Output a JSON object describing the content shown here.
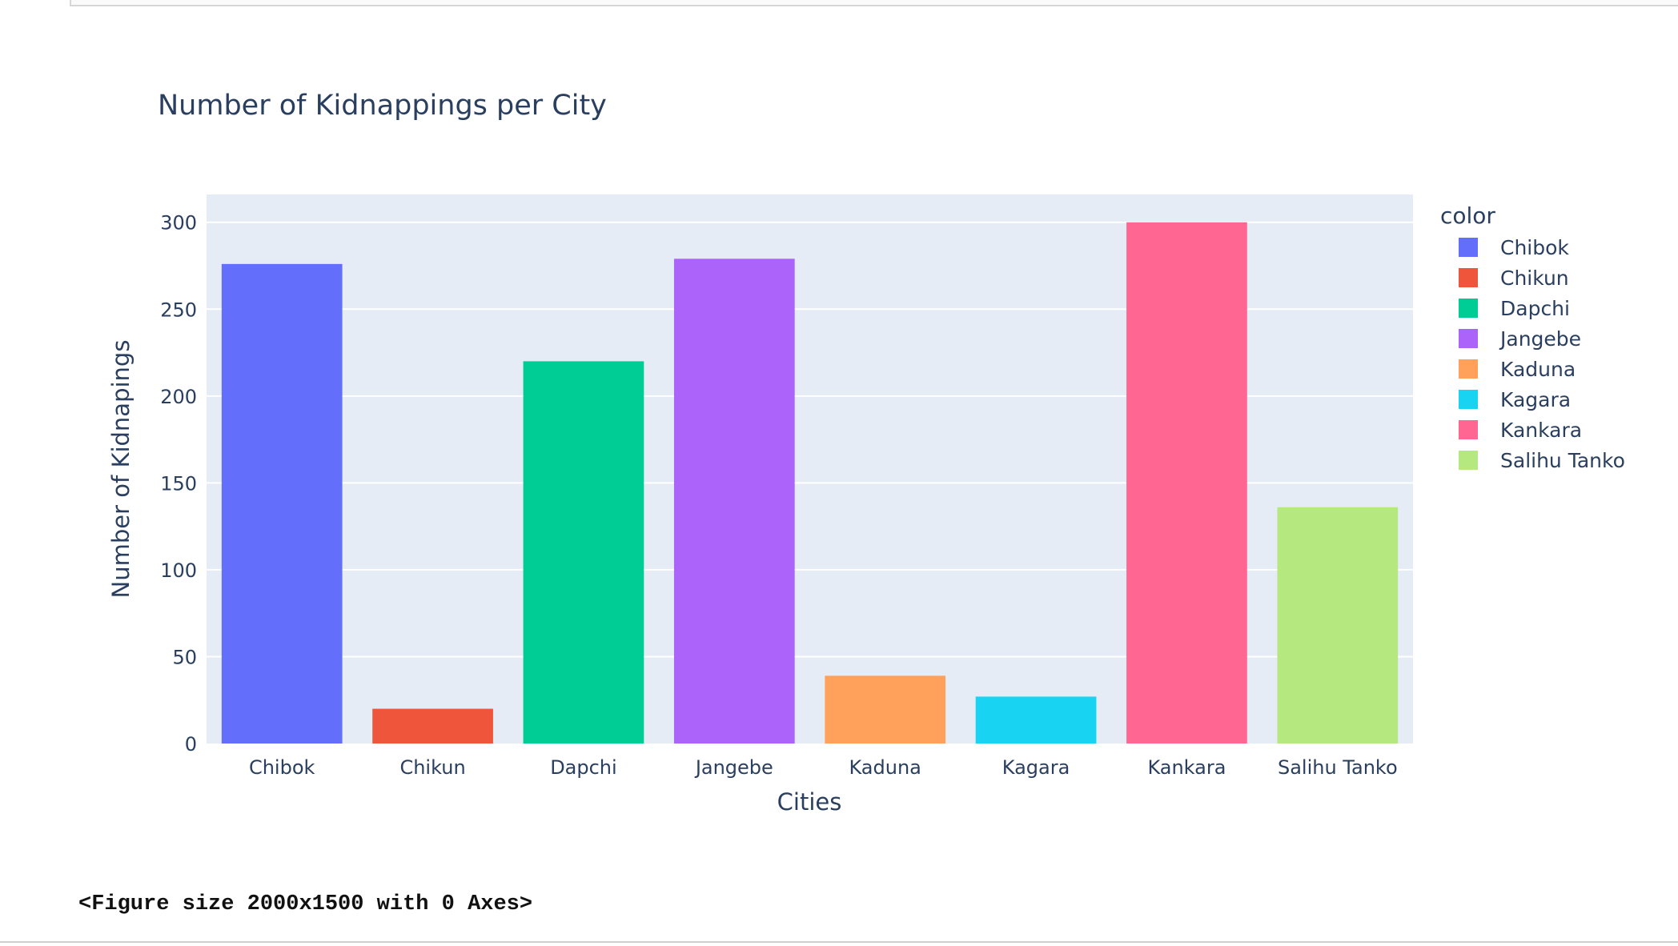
{
  "output": {
    "figure_text": "<Figure size 2000x1500 with 0 Axes>"
  },
  "colors": {
    "plot_bg": "#e5ecf6",
    "grid": "#ffffff",
    "text": "#2a3f5f"
  },
  "chart_data": {
    "type": "bar",
    "title": "Number of Kidnappings per City",
    "xlabel": "Cities",
    "ylabel": "Number of Kidnapings",
    "categories": [
      "Chibok",
      "Chikun",
      "Dapchi",
      "Jangebe",
      "Kaduna",
      "Kagara",
      "Kankara",
      "Salihu Tanko"
    ],
    "values": [
      276,
      20,
      220,
      279,
      39,
      27,
      300,
      136
    ],
    "ylim": [
      0,
      316
    ],
    "yticks": [
      0,
      50,
      100,
      150,
      200,
      250,
      300
    ],
    "grid": true,
    "legend": {
      "title": "color",
      "placement": "right",
      "entries": [
        {
          "name": "Chibok",
          "color": "#636efa"
        },
        {
          "name": "Chikun",
          "color": "#ef553b"
        },
        {
          "name": "Dapchi",
          "color": "#00cc96"
        },
        {
          "name": "Jangebe",
          "color": "#ab63fa"
        },
        {
          "name": "Kaduna",
          "color": "#ffa15a"
        },
        {
          "name": "Kagara",
          "color": "#19d3f3"
        },
        {
          "name": "Kankara",
          "color": "#ff6692"
        },
        {
          "name": "Salihu Tanko",
          "color": "#b6e880"
        }
      ]
    },
    "bar_colors": [
      "#636efa",
      "#ef553b",
      "#00cc96",
      "#ab63fa",
      "#ffa15a",
      "#19d3f3",
      "#ff6692",
      "#b6e880"
    ]
  }
}
